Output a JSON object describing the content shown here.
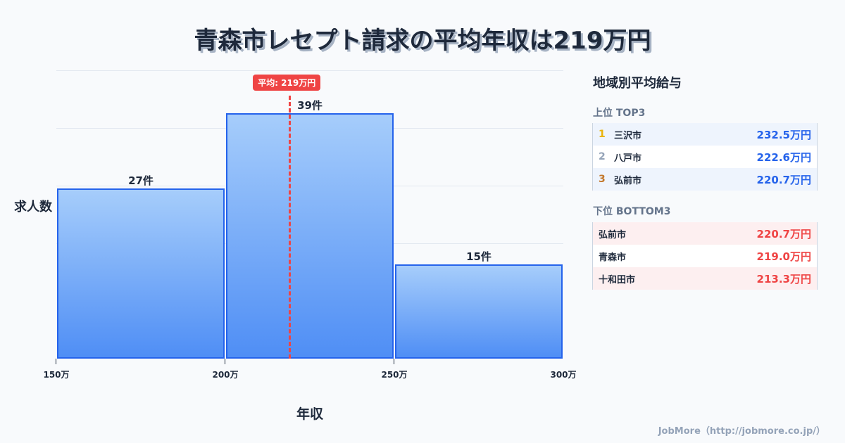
{
  "title": "青森市レセプト請求の平均年収は219万円",
  "chart_data": {
    "type": "bar",
    "title": "青森市レセプト請求の平均年収は219万円",
    "xlabel": "年収",
    "ylabel": "求人数",
    "categories": [
      "150万-200万",
      "200万-250万",
      "250万-300万"
    ],
    "values": [
      27,
      39,
      15
    ],
    "value_labels": [
      "27件",
      "39件",
      "15件"
    ],
    "x_ticks": [
      "150万",
      "200万",
      "250万",
      "300万"
    ],
    "x_range": [
      150,
      300
    ],
    "ylim": [
      0,
      45.8
    ],
    "grid": true,
    "average": {
      "value": 219,
      "label": "平均: 219万円"
    },
    "colors": {
      "bar": "#5b9bf7",
      "bar_border": "#2563eb",
      "average": "#ef4444"
    }
  },
  "panel": {
    "title": "地域別平均給与",
    "top": {
      "label": "上位 TOP3",
      "rows": [
        {
          "rank": "1",
          "city": "三沢市",
          "value": "232.5万円",
          "rank_color": "#eab308"
        },
        {
          "rank": "2",
          "city": "八戸市",
          "value": "222.6万円",
          "rank_color": "#94a3b8"
        },
        {
          "rank": "3",
          "city": "弘前市",
          "value": "220.7万円",
          "rank_color": "#c2772b"
        }
      ]
    },
    "bottom": {
      "label": "下位 BOTTOM3",
      "rows": [
        {
          "city": "弘前市",
          "value": "220.7万円"
        },
        {
          "city": "青森市",
          "value": "219.0万円"
        },
        {
          "city": "十和田市",
          "value": "213.3万円"
        }
      ]
    }
  },
  "footer": "JobMore（http://jobmore.co.jp/）"
}
